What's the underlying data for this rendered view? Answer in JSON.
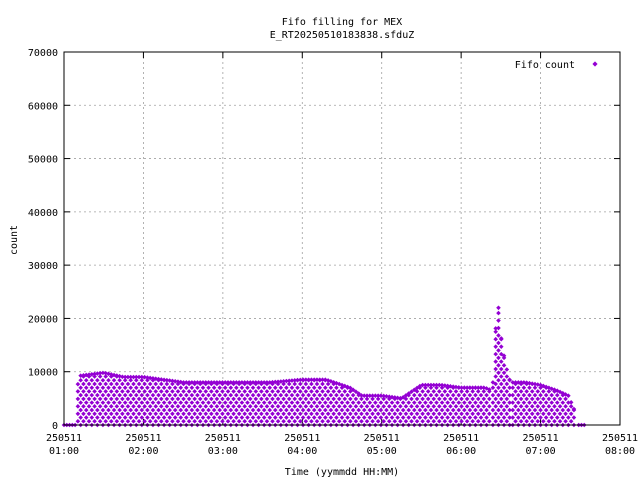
{
  "chart_data": {
    "type": "scatter",
    "title": "Fifo filling for MEX",
    "subtitle": "E_RT20250510183838.sfduZ",
    "xlabel": "Time (yymmdd HH:MM)",
    "ylabel": "count",
    "xlim_hours": [
      1.0,
      8.0
    ],
    "ylim": [
      0,
      70000
    ],
    "y_ticks": [
      0,
      10000,
      20000,
      30000,
      40000,
      50000,
      60000,
      70000
    ],
    "x_ticks": [
      {
        "h": 1,
        "date": "250511",
        "time": "01:00"
      },
      {
        "h": 2,
        "date": "250511",
        "time": "02:00"
      },
      {
        "h": 3,
        "date": "250511",
        "time": "03:00"
      },
      {
        "h": 4,
        "date": "250511",
        "time": "04:00"
      },
      {
        "h": 5,
        "date": "250511",
        "time": "05:00"
      },
      {
        "h": 6,
        "date": "250511",
        "time": "06:00"
      },
      {
        "h": 7,
        "date": "250511",
        "time": "07:00"
      },
      {
        "h": 8,
        "date": "250511",
        "time": "08:00"
      }
    ],
    "grid": true,
    "legend_position": "top-right",
    "series": [
      {
        "name": "Fifo count",
        "color": "#9400d3",
        "marker": "diamond",
        "envelope": [
          [
            1.0,
            0
          ],
          [
            1.15,
            0
          ],
          [
            1.18,
            9200
          ],
          [
            1.5,
            9800
          ],
          [
            1.75,
            9000
          ],
          [
            2.0,
            9000
          ],
          [
            2.25,
            8500
          ],
          [
            2.5,
            8000
          ],
          [
            2.9,
            8000
          ],
          [
            3.25,
            8000
          ],
          [
            3.6,
            8000
          ],
          [
            4.0,
            8500
          ],
          [
            4.3,
            8500
          ],
          [
            4.6,
            7000
          ],
          [
            4.75,
            5500
          ],
          [
            5.0,
            5500
          ],
          [
            5.25,
            5000
          ],
          [
            5.5,
            7500
          ],
          [
            5.75,
            7500
          ],
          [
            6.0,
            7000
          ],
          [
            6.3,
            7000
          ],
          [
            6.38,
            6500
          ]
        ],
        "peak": [
          [
            6.4,
            8000
          ],
          [
            6.42,
            14000
          ],
          [
            6.44,
            19500
          ],
          [
            6.46,
            23000
          ],
          [
            6.48,
            21000
          ],
          [
            6.5,
            17000
          ],
          [
            6.52,
            14000
          ],
          [
            6.55,
            12500
          ],
          [
            6.58,
            10000
          ],
          [
            6.62,
            8000
          ]
        ],
        "tail": [
          [
            6.65,
            8000
          ],
          [
            6.8,
            8000
          ],
          [
            7.0,
            7500
          ],
          [
            7.2,
            6500
          ],
          [
            7.35,
            5500
          ],
          [
            7.42,
            3000
          ],
          [
            7.45,
            0
          ]
        ]
      }
    ]
  }
}
